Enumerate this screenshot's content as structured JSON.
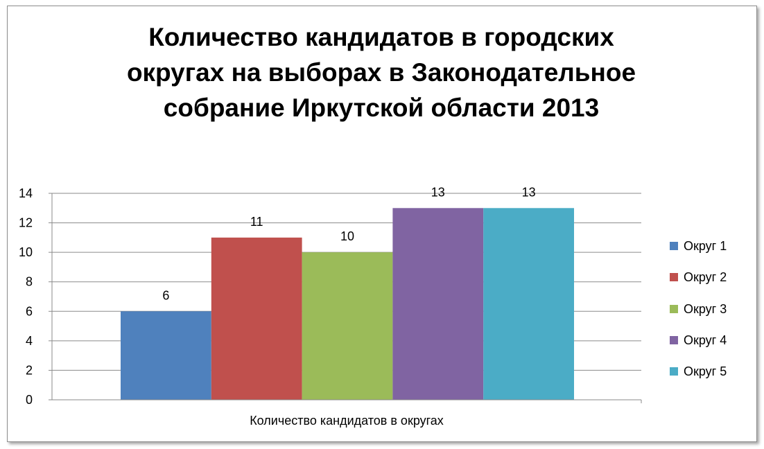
{
  "chart_data": {
    "type": "bar",
    "title": "Количество кандидатов в городских округах на выборах в Законодательное собрание Иркутской области 2013",
    "categories": [
      "Количество кандидатов в округах"
    ],
    "xlabel": "Количество кандидатов в округах",
    "ylabel": "",
    "ylim": [
      0,
      14
    ],
    "yticks": [
      "0",
      "2",
      "4",
      "6",
      "8",
      "10",
      "12",
      "14"
    ],
    "grid": true,
    "legend_position": "right",
    "series": [
      {
        "name": "Округ 1",
        "values": [
          6
        ],
        "color": "#4f81bd",
        "label": "6"
      },
      {
        "name": "Округ 2",
        "values": [
          11
        ],
        "color": "#c0504d",
        "label": "11"
      },
      {
        "name": "Округ 3",
        "values": [
          10
        ],
        "color": "#9bbb59",
        "label": "10"
      },
      {
        "name": "Округ 4",
        "values": [
          13
        ],
        "color": "#8064a2",
        "label": "13"
      },
      {
        "name": "Округ 5",
        "values": [
          13
        ],
        "color": "#4bacc6",
        "label": "13"
      }
    ]
  }
}
